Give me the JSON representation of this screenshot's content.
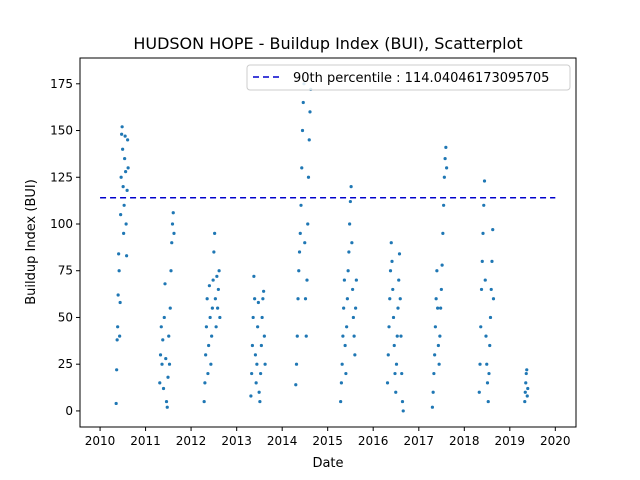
{
  "chart_data": {
    "type": "scatter",
    "title": "HUDSON HOPE - Buildup Index (BUI), Scatterplot",
    "xlabel": "Date",
    "ylabel": "Buildup Index (BUI)",
    "xlim": [
      "2009-07-24",
      "2020-06-15"
    ],
    "ylim": [
      -8.6,
      188.8
    ],
    "x_ticks": [
      "2010",
      "2011",
      "2012",
      "2013",
      "2014",
      "2015",
      "2016",
      "2017",
      "2018",
      "2019",
      "2020"
    ],
    "y_ticks": [
      0,
      25,
      50,
      75,
      100,
      125,
      150,
      175
    ],
    "grid": false,
    "legend_position": "top-right",
    "marker_color": "#1f77b4",
    "reference_line": {
      "label": "90th percentile : 114.04046173095705",
      "value": 114.04046173095705,
      "style": "dashed",
      "color": "#0000cc",
      "x_range": [
        "2010-01-01",
        "2020-01-01"
      ]
    },
    "series": [
      {
        "seasons": [
          {
            "year": 2010,
            "points": [
              [
                "2010-05-10",
                4
              ],
              [
                "2010-05-14",
                22
              ],
              [
                "2010-05-18",
                38
              ],
              [
                "2010-05-22",
                45
              ],
              [
                "2010-05-26",
                62
              ],
              [
                "2010-05-30",
                84
              ],
              [
                "2010-06-03",
                75
              ],
              [
                "2010-06-07",
                40
              ],
              [
                "2010-06-11",
                58
              ],
              [
                "2010-06-15",
                105
              ],
              [
                "2010-06-19",
                125
              ],
              [
                "2010-06-23",
                148
              ],
              [
                "2010-06-27",
                152
              ],
              [
                "2010-07-01",
                140
              ],
              [
                "2010-07-05",
                120
              ],
              [
                "2010-07-09",
                95
              ],
              [
                "2010-07-13",
                110
              ],
              [
                "2010-07-17",
                135
              ],
              [
                "2010-07-21",
                147
              ],
              [
                "2010-07-25",
                128
              ],
              [
                "2010-07-29",
                100
              ],
              [
                "2010-08-02",
                83
              ],
              [
                "2010-08-06",
                118
              ],
              [
                "2010-08-10",
                145
              ],
              [
                "2010-08-14",
                130
              ]
            ]
          },
          {
            "year": 2011,
            "points": [
              [
                "2011-04-25",
                15
              ],
              [
                "2011-05-01",
                30
              ],
              [
                "2011-05-07",
                45
              ],
              [
                "2011-05-13",
                25
              ],
              [
                "2011-05-19",
                38
              ],
              [
                "2011-05-25",
                12
              ],
              [
                "2011-05-31",
                50
              ],
              [
                "2011-06-06",
                68
              ],
              [
                "2011-06-12",
                28
              ],
              [
                "2011-06-18",
                5
              ],
              [
                "2011-06-24",
                2
              ],
              [
                "2011-06-30",
                18
              ],
              [
                "2011-07-06",
                40
              ],
              [
                "2011-07-12",
                25
              ],
              [
                "2011-07-18",
                55
              ],
              [
                "2011-07-24",
                75
              ],
              [
                "2011-07-30",
                90
              ],
              [
                "2011-08-05",
                100
              ],
              [
                "2011-08-11",
                106
              ],
              [
                "2011-08-17",
                95
              ]
            ]
          },
          {
            "year": 2012,
            "points": [
              [
                "2012-04-15",
                5
              ],
              [
                "2012-04-21",
                15
              ],
              [
                "2012-04-27",
                30
              ],
              [
                "2012-05-03",
                45
              ],
              [
                "2012-05-09",
                60
              ],
              [
                "2012-05-15",
                20
              ],
              [
                "2012-05-21",
                35
              ],
              [
                "2012-05-27",
                67
              ],
              [
                "2012-06-02",
                50
              ],
              [
                "2012-06-08",
                25
              ],
              [
                "2012-06-14",
                40
              ],
              [
                "2012-06-20",
                55
              ],
              [
                "2012-06-26",
                70
              ],
              [
                "2012-07-02",
                85
              ],
              [
                "2012-07-08",
                95
              ],
              [
                "2012-07-14",
                60
              ],
              [
                "2012-07-20",
                45
              ],
              [
                "2012-07-26",
                72
              ],
              [
                "2012-08-01",
                55
              ],
              [
                "2012-08-07",
                65
              ],
              [
                "2012-08-13",
                75
              ],
              [
                "2012-08-19",
                50
              ]
            ]
          },
          {
            "year": 2013,
            "points": [
              [
                "2013-04-25",
                8
              ],
              [
                "2013-05-01",
                20
              ],
              [
                "2013-05-07",
                35
              ],
              [
                "2013-05-13",
                50
              ],
              [
                "2013-05-19",
                72
              ],
              [
                "2013-05-25",
                60
              ],
              [
                "2013-05-31",
                30
              ],
              [
                "2013-06-06",
                15
              ],
              [
                "2013-06-12",
                25
              ],
              [
                "2013-06-18",
                45
              ],
              [
                "2013-06-24",
                58
              ],
              [
                "2013-06-30",
                10
              ],
              [
                "2013-07-06",
                5
              ],
              [
                "2013-07-12",
                20
              ],
              [
                "2013-07-18",
                35
              ],
              [
                "2013-07-24",
                50
              ],
              [
                "2013-07-30",
                60
              ],
              [
                "2013-08-05",
                64
              ],
              [
                "2013-08-11",
                40
              ],
              [
                "2013-08-17",
                25
              ]
            ]
          },
          {
            "year": 2014,
            "points": [
              [
                "2014-04-20",
                14
              ],
              [
                "2014-04-26",
                25
              ],
              [
                "2014-05-02",
                40
              ],
              [
                "2014-05-08",
                60
              ],
              [
                "2014-05-14",
                75
              ],
              [
                "2014-05-20",
                85
              ],
              [
                "2014-05-26",
                95
              ],
              [
                "2014-06-01",
                110
              ],
              [
                "2014-06-07",
                130
              ],
              [
                "2014-06-13",
                150
              ],
              [
                "2014-06-19",
                165
              ],
              [
                "2014-06-25",
                175
              ],
              [
                "2014-07-01",
                90
              ],
              [
                "2014-07-07",
                60
              ],
              [
                "2014-07-13",
                40
              ],
              [
                "2014-07-19",
                70
              ],
              [
                "2014-07-25",
                100
              ],
              [
                "2014-07-31",
                125
              ],
              [
                "2014-08-06",
                145
              ],
              [
                "2014-08-12",
                160
              ],
              [
                "2014-08-18",
                172
              ]
            ]
          },
          {
            "year": 2015,
            "points": [
              [
                "2015-04-15",
                5
              ],
              [
                "2015-04-21",
                15
              ],
              [
                "2015-04-27",
                25
              ],
              [
                "2015-05-03",
                40
              ],
              [
                "2015-05-09",
                55
              ],
              [
                "2015-05-15",
                70
              ],
              [
                "2015-05-21",
                35
              ],
              [
                "2015-05-27",
                20
              ],
              [
                "2015-06-02",
                45
              ],
              [
                "2015-06-08",
                60
              ],
              [
                "2015-06-14",
                75
              ],
              [
                "2015-06-20",
                85
              ],
              [
                "2015-06-26",
                100
              ],
              [
                "2015-07-02",
                112
              ],
              [
                "2015-07-08",
                120
              ],
              [
                "2015-07-14",
                90
              ],
              [
                "2015-07-20",
                65
              ],
              [
                "2015-07-26",
                50
              ],
              [
                "2015-08-01",
                40
              ],
              [
                "2015-08-07",
                30
              ],
              [
                "2015-08-13",
                55
              ],
              [
                "2015-08-19",
                70
              ]
            ]
          },
          {
            "year": 2016,
            "points": [
              [
                "2016-04-25",
                15
              ],
              [
                "2016-05-01",
                30
              ],
              [
                "2016-05-07",
                45
              ],
              [
                "2016-05-13",
                60
              ],
              [
                "2016-05-19",
                75
              ],
              [
                "2016-05-25",
                90
              ],
              [
                "2016-05-31",
                80
              ],
              [
                "2016-06-06",
                65
              ],
              [
                "2016-06-12",
                50
              ],
              [
                "2016-06-18",
                35
              ],
              [
                "2016-06-24",
                20
              ],
              [
                "2016-06-30",
                10
              ],
              [
                "2016-07-06",
                25
              ],
              [
                "2016-07-12",
                40
              ],
              [
                "2016-07-18",
                55
              ],
              [
                "2016-07-24",
                70
              ],
              [
                "2016-07-30",
                84
              ],
              [
                "2016-08-05",
                60
              ],
              [
                "2016-08-11",
                40
              ],
              [
                "2016-08-17",
                20
              ],
              [
                "2016-08-23",
                5
              ],
              [
                "2016-08-29",
                0
              ]
            ]
          },
          {
            "year": 2017,
            "points": [
              [
                "2017-04-20",
                2
              ],
              [
                "2017-04-26",
                10
              ],
              [
                "2017-05-02",
                20
              ],
              [
                "2017-05-08",
                30
              ],
              [
                "2017-05-14",
                45
              ],
              [
                "2017-05-20",
                60
              ],
              [
                "2017-05-26",
                75
              ],
              [
                "2017-06-01",
                55
              ],
              [
                "2017-06-07",
                35
              ],
              [
                "2017-06-13",
                25
              ],
              [
                "2017-06-19",
                40
              ],
              [
                "2017-06-25",
                55
              ],
              [
                "2017-07-01",
                65
              ],
              [
                "2017-07-07",
                78
              ],
              [
                "2017-07-13",
                95
              ],
              [
                "2017-07-19",
                110
              ],
              [
                "2017-07-25",
                125
              ],
              [
                "2017-07-31",
                135
              ],
              [
                "2017-08-06",
                141
              ],
              [
                "2017-08-12",
                130
              ]
            ]
          },
          {
            "year": 2018,
            "points": [
              [
                "2018-05-01",
                10
              ],
              [
                "2018-05-07",
                25
              ],
              [
                "2018-05-13",
                45
              ],
              [
                "2018-05-19",
                65
              ],
              [
                "2018-05-25",
                80
              ],
              [
                "2018-05-31",
                95
              ],
              [
                "2018-06-06",
                110
              ],
              [
                "2018-06-12",
                123
              ],
              [
                "2018-06-18",
                70
              ],
              [
                "2018-06-24",
                40
              ],
              [
                "2018-06-30",
                25
              ],
              [
                "2018-07-06",
                15
              ],
              [
                "2018-07-12",
                5
              ],
              [
                "2018-07-18",
                20
              ],
              [
                "2018-07-24",
                35
              ],
              [
                "2018-07-30",
                50
              ],
              [
                "2018-08-05",
                65
              ],
              [
                "2018-08-11",
                80
              ],
              [
                "2018-08-17",
                97
              ],
              [
                "2018-08-23",
                60
              ]
            ]
          },
          {
            "year": 2019,
            "points": [
              [
                "2019-05-01",
                5
              ],
              [
                "2019-05-05",
                10
              ],
              [
                "2019-05-09",
                15
              ],
              [
                "2019-05-13",
                20
              ],
              [
                "2019-05-17",
                22
              ],
              [
                "2019-05-21",
                8
              ],
              [
                "2019-05-25",
                12
              ]
            ]
          }
        ]
      }
    ]
  }
}
